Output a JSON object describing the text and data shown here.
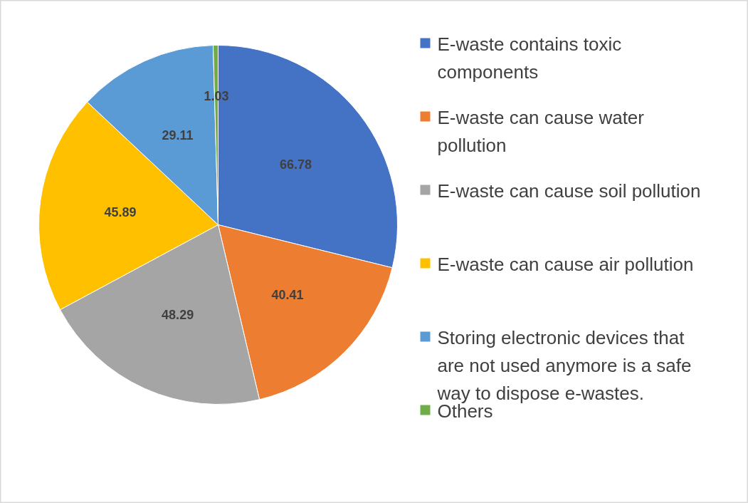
{
  "chart_data": {
    "type": "pie",
    "categories": [
      "E-waste contains toxic components",
      "E-waste can cause water pollution",
      "E-waste can cause soil pollution",
      "E-waste can cause air pollution",
      "Storing electronic devices that are not used anymore is a safe way to dispose e-wastes.",
      "Others"
    ],
    "values": [
      66.78,
      40.41,
      48.29,
      45.89,
      29.11,
      1.03
    ],
    "colors": [
      "#4472c4",
      "#ed7d31",
      "#a5a5a5",
      "#ffc000",
      "#5b9bd5",
      "#70ad47"
    ],
    "data_labels": true,
    "legend": "right"
  }
}
